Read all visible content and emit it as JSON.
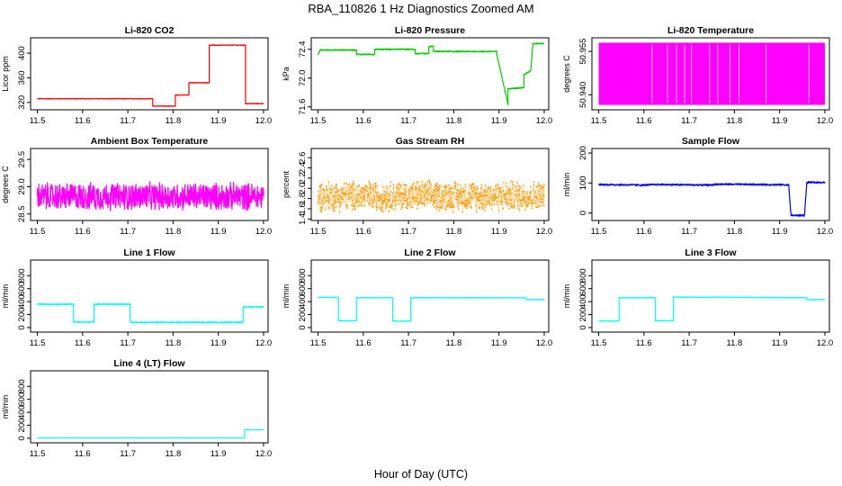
{
  "figure": {
    "title": "RBA_110826  1 Hz Diagnostics Zoomed AM",
    "xlabel": "Hour of Day (UTC)"
  },
  "chart_data": [
    {
      "id": "co2",
      "type": "line",
      "title": "Li-820 CO2",
      "ylabel": "Licor ppm",
      "color": "#ff0000",
      "xlim": [
        11.485,
        12.01
      ],
      "ylim": [
        308,
        425
      ],
      "xticks": [
        "11.5",
        "11.6",
        "11.7",
        "11.8",
        "11.9",
        "12.0"
      ],
      "yticks": [
        "320",
        "360",
        "400"
      ],
      "noise": 0.6,
      "x": [
        11.5,
        11.755,
        11.755,
        11.805,
        11.805,
        11.835,
        11.835,
        11.88,
        11.88,
        11.96,
        11.96,
        12.0
      ],
      "y": [
        326,
        326,
        314,
        314,
        332,
        332,
        352,
        352,
        413,
        413,
        318,
        318
      ]
    },
    {
      "id": "pressure",
      "type": "line",
      "title": "Li-820 Pressure",
      "ylabel": "kPa",
      "color": "#00cc00",
      "xlim": [
        11.485,
        12.01
      ],
      "ylim": [
        71.56,
        72.56
      ],
      "xticks": [
        "11.5",
        "11.6",
        "11.7",
        "11.8",
        "11.9",
        "12.0"
      ],
      "yticks": [
        "71.6",
        "72.0",
        "72.4"
      ],
      "noise": 0.01,
      "x": [
        11.5,
        11.505,
        11.585,
        11.585,
        11.625,
        11.625,
        11.715,
        11.715,
        11.745,
        11.745,
        11.755,
        11.755,
        11.895,
        11.895,
        11.915,
        11.92,
        11.92,
        11.955,
        11.955,
        11.97,
        11.975,
        12.0
      ],
      "y": [
        72.33,
        72.39,
        72.39,
        72.33,
        72.33,
        72.4,
        72.4,
        72.34,
        72.34,
        72.44,
        72.44,
        72.37,
        72.37,
        72.33,
        71.78,
        71.63,
        71.85,
        71.87,
        72.05,
        72.1,
        72.48,
        72.48
      ]
    },
    {
      "id": "licor-temp",
      "type": "line",
      "title": "Li-820 Temperature",
      "ylabel": "degrees C",
      "color": "#ff00ff",
      "xlim": [
        11.485,
        12.01
      ],
      "ylim": [
        50.9348,
        50.9597
      ],
      "xticks": [
        "11.5",
        "11.6",
        "11.7",
        "11.8",
        "11.9",
        "12.0"
      ],
      "yticks": [
        "50.940",
        "50.955"
      ],
      "noise": 0,
      "band": [
        50.9365,
        50.958
      ],
      "gaps": [
        11.618,
        11.652,
        11.672,
        11.69,
        11.705,
        11.745,
        11.763,
        11.79,
        11.81,
        11.87,
        11.965
      ]
    },
    {
      "id": "box-temp",
      "type": "line",
      "title": "Ambient Box Temperature",
      "ylabel": "degrees C",
      "color": "#ff00ff",
      "xlim": [
        11.485,
        12.01
      ],
      "ylim": [
        28.38,
        29.7
      ],
      "xticks": [
        "11.5",
        "11.6",
        "11.7",
        "11.8",
        "11.9",
        "12.0"
      ],
      "yticks": [
        "28.5",
        "29.0",
        "29.5"
      ],
      "noise": 0.28,
      "x": [
        11.5,
        12.0
      ],
      "y": [
        28.82,
        28.82
      ]
    },
    {
      "id": "rh",
      "type": "scatter",
      "title": "Gas Stream RH",
      "ylabel": "percent",
      "color": "#ff9900",
      "xlim": [
        11.485,
        12.01
      ],
      "ylim": [
        1.37,
        2.78
      ],
      "xticks": [
        "11.5",
        "11.6",
        "11.7",
        "11.8",
        "11.9",
        "12.0"
      ],
      "yticks": [
        "1.4",
        "1.6",
        "1.8",
        "2.0",
        "2.2",
        "2.4",
        "2.6"
      ],
      "noise": 0.33,
      "x": [
        11.5,
        12.0
      ],
      "y": [
        1.85,
        1.85
      ]
    },
    {
      "id": "sample-flow",
      "type": "line",
      "title": "Sample Flow",
      "ylabel": "ml/min",
      "color": "#0000ff",
      "xlim": [
        11.485,
        12.01
      ],
      "ylim": [
        -25,
        215
      ],
      "xticks": [
        "11.5",
        "11.6",
        "11.7",
        "11.8",
        "11.9",
        "12.0"
      ],
      "yticks": [
        "0",
        "100",
        "200"
      ],
      "noise": 3.5,
      "x": [
        11.5,
        11.6,
        11.63,
        11.75,
        11.76,
        11.92,
        11.925,
        11.955,
        11.96,
        12.0
      ],
      "y": [
        95,
        93,
        95,
        93,
        96,
        94,
        -8,
        -8,
        102,
        102
      ]
    },
    {
      "id": "line1",
      "type": "line",
      "title": "Line 1 Flow",
      "ylabel": "ml/min",
      "color": "#00ffff",
      "xlim": [
        11.485,
        12.01
      ],
      "ylim": [
        -70,
        1040
      ],
      "xticks": [
        "11.5",
        "11.6",
        "11.7",
        "11.8",
        "11.9",
        "12.0"
      ],
      "yticks": [
        "0",
        "200",
        "400",
        "600",
        "800"
      ],
      "noise": 12,
      "x": [
        11.5,
        11.58,
        11.58,
        11.625,
        11.625,
        11.705,
        11.705,
        11.955,
        11.955,
        12.0
      ],
      "y": [
        360,
        360,
        85,
        85,
        360,
        360,
        80,
        80,
        320,
        320
      ]
    },
    {
      "id": "line2",
      "type": "line",
      "title": "Line 2 Flow",
      "ylabel": "ml/min",
      "color": "#00ffff",
      "xlim": [
        11.485,
        12.01
      ],
      "ylim": [
        -70,
        1040
      ],
      "xticks": [
        "11.5",
        "11.6",
        "11.7",
        "11.8",
        "11.9",
        "12.0"
      ],
      "yticks": [
        "0",
        "200",
        "400",
        "600",
        "800"
      ],
      "noise": 5,
      "x": [
        11.5,
        11.545,
        11.545,
        11.585,
        11.585,
        11.665,
        11.665,
        11.705,
        11.705,
        11.96,
        11.96,
        12.0
      ],
      "y": [
        465,
        465,
        105,
        105,
        460,
        460,
        100,
        100,
        460,
        460,
        430,
        430
      ]
    },
    {
      "id": "line3",
      "type": "line",
      "title": "Line 3 Flow",
      "ylabel": "ml/min",
      "color": "#00ffff",
      "xlim": [
        11.485,
        12.01
      ],
      "ylim": [
        -70,
        1040
      ],
      "xticks": [
        "11.5",
        "11.6",
        "11.7",
        "11.8",
        "11.9",
        "12.0"
      ],
      "yticks": [
        "0",
        "200",
        "400",
        "600",
        "800"
      ],
      "noise": 5,
      "x": [
        11.5,
        11.545,
        11.545,
        11.625,
        11.625,
        11.665,
        11.665,
        11.96,
        11.96,
        12.0
      ],
      "y": [
        100,
        100,
        460,
        460,
        105,
        105,
        470,
        460,
        430,
        430
      ]
    },
    {
      "id": "line4",
      "type": "line",
      "title": "Line 4 (LT) Flow",
      "ylabel": "ml/min",
      "color": "#00ffff",
      "xlim": [
        11.485,
        12.01
      ],
      "ylim": [
        -70,
        1040
      ],
      "xticks": [
        "11.5",
        "11.6",
        "11.7",
        "11.8",
        "11.9",
        "12.0"
      ],
      "yticks": [
        "0",
        "200",
        "400",
        "600",
        "800"
      ],
      "noise": 1,
      "x": [
        11.5,
        11.958,
        11.958,
        12.0
      ],
      "y": [
        5,
        5,
        130,
        130
      ]
    }
  ]
}
